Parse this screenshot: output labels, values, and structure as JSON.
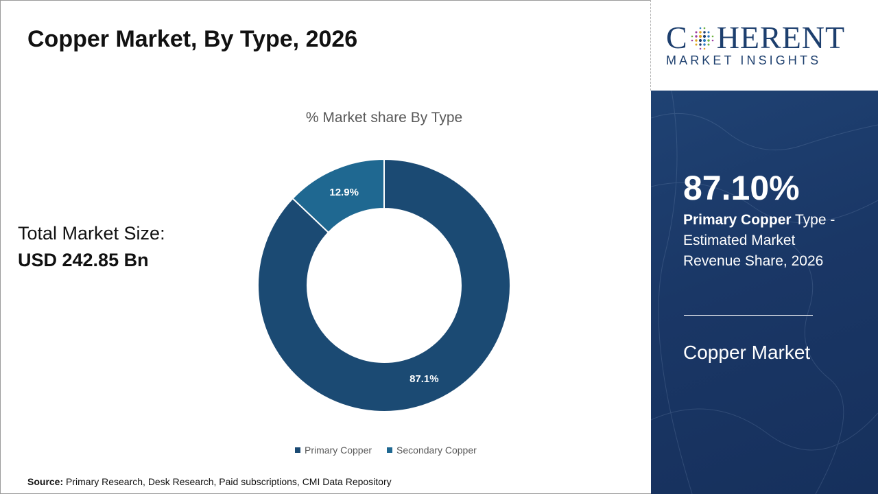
{
  "page": {
    "title": "Copper Market, By Type, 2026",
    "total_market_label": "Total Market Size:",
    "total_market_value": "USD 242.85 Bn",
    "source_label": "Source:",
    "source_text": " Primary Research, Desk Research, Paid subscriptions, CMI Data Repository"
  },
  "brand": {
    "logo_prefix": "C",
    "logo_suffix": "HERENT",
    "logo_sub": "MARKET INSIGHTS",
    "color": "#1d3f6e"
  },
  "side_panel": {
    "highlight_value": "87.10%",
    "highlight_segment": "Primary Copper",
    "highlight_desc": " Type - Estimated Market Revenue Share, 2026",
    "market_name": "Copper Market"
  },
  "chart_data": {
    "type": "pie",
    "donut": true,
    "title": "% Market share By Type",
    "categories": [
      "Primary Copper",
      "Secondary Copper"
    ],
    "values": [
      87.1,
      12.9
    ],
    "labels": [
      "87.1%",
      "12.9%"
    ],
    "colors": [
      "#1b4a73",
      "#1f6891"
    ],
    "legend_position": "bottom"
  }
}
